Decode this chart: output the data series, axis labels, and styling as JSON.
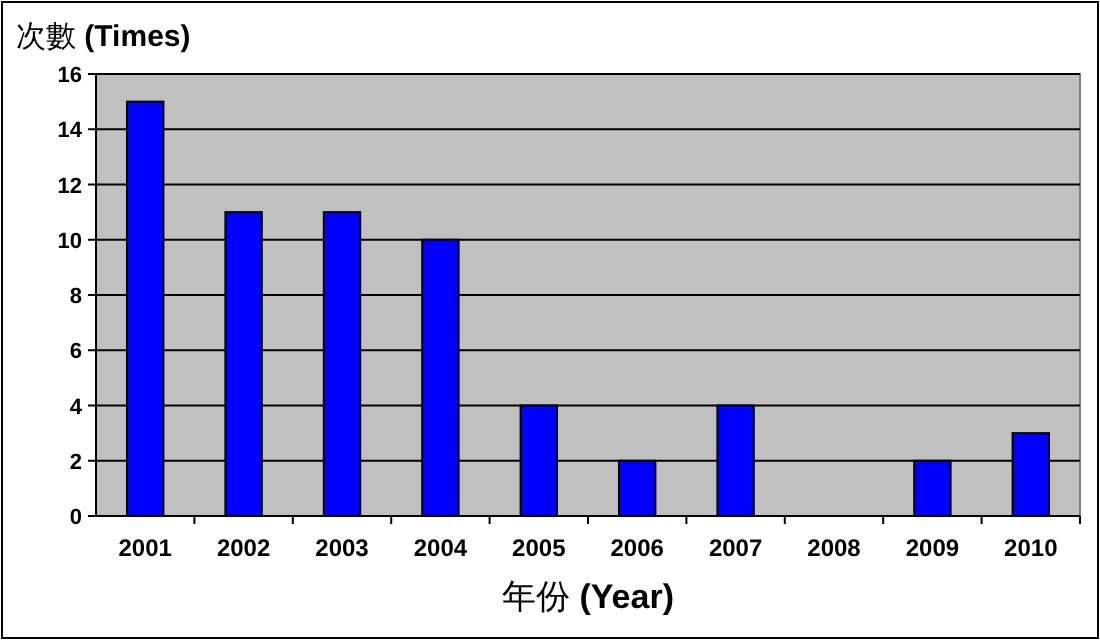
{
  "chart_data": {
    "type": "bar",
    "ylabel": "次數 **(Times)**",
    "xlabel": "年份 **(Year)**",
    "categories": [
      "2001",
      "2002",
      "2003",
      "2004",
      "2005",
      "2006",
      "2007",
      "2008",
      "2009",
      "2010"
    ],
    "values": [
      15,
      11,
      11,
      10,
      4,
      2,
      4,
      0,
      2,
      3
    ],
    "color": "#0000ff",
    "ylim": [
      0,
      16
    ],
    "yticks": [
      0,
      2,
      4,
      6,
      8,
      10,
      12,
      14,
      16
    ],
    "grid": "y"
  }
}
